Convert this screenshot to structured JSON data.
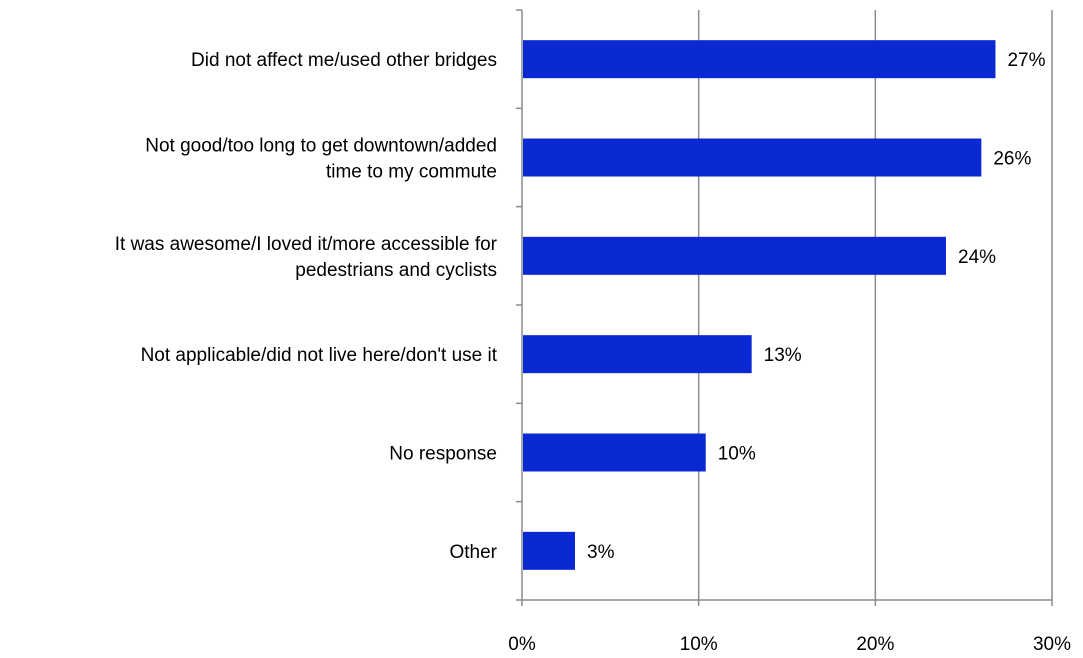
{
  "chart_data": {
    "type": "bar",
    "orientation": "horizontal",
    "title": "",
    "xlabel": "",
    "ylabel": "",
    "categories": [
      [
        "Did not affect me/used other bridges"
      ],
      [
        "Not good/too long to get downtown/added",
        "time to my commute"
      ],
      [
        "It was awesome/I loved it/more accessible for",
        "pedestrians and cyclists"
      ],
      [
        "Not applicable/did not live here/don't use it"
      ],
      [
        "No response"
      ],
      [
        "Other"
      ]
    ],
    "values": [
      26.8,
      26.0,
      24.0,
      13.0,
      10.4,
      3.0
    ],
    "data_labels": [
      "27%",
      "26%",
      "24%",
      "13%",
      "10%",
      "3%"
    ],
    "xlim": [
      0,
      30
    ],
    "x_ticks": [
      0,
      10,
      20,
      30
    ],
    "x_tick_labels": [
      "0%",
      "10%",
      "20%",
      "30%"
    ],
    "grid": "vertical",
    "legend": "none",
    "bar_color": "#0B29D2",
    "grid_color": "#8c8c8c",
    "axis_color": "#8c8c8c"
  }
}
